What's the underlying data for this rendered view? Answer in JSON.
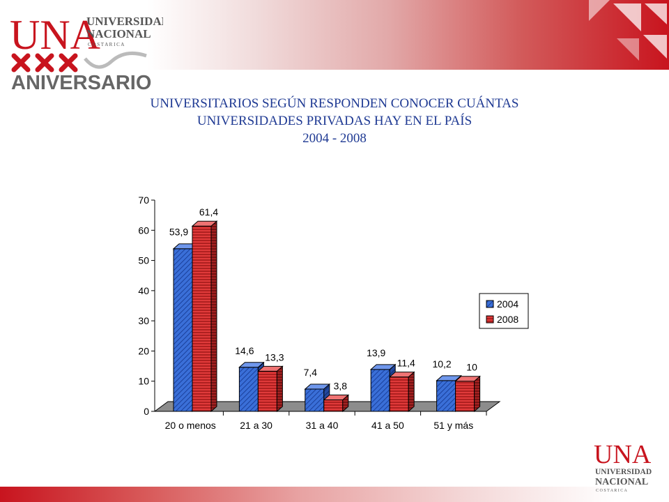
{
  "logo_top": {
    "una": "UNA",
    "universidad": "UNIVERSIDAD",
    "nacional": "NACIONAL",
    "costa_rica": "C O S T A   R I C A",
    "aniversario": "ANIVERSARIO"
  },
  "logo_bottom": {
    "una": "UNA",
    "universidad": "UNIVERSIDAD",
    "nacional": "NACIONAL",
    "costa_rica": "C O S T A   R I C A"
  },
  "title": {
    "line1": "UNIVERSITARIOS SEGÚN RESPONDEN CONOCER CUÁNTAS",
    "line2": "UNIVERSIDADES PRIVADAS HAY  EN EL PAÍS",
    "line3": "2004  - 2008"
  },
  "colors": {
    "brand_red": "#c8141e",
    "title_blue": "#1f3a93",
    "series_2004": "#3a6fd8",
    "series_2008": "#e03a3a"
  },
  "chart_data": {
    "type": "bar",
    "categories": [
      "20 o menos",
      "21 a 30",
      "31 a 40",
      "41 a 50",
      "51 y más"
    ],
    "series": [
      {
        "name": "2004",
        "values": [
          53.9,
          14.6,
          7.4,
          13.9,
          10.2
        ],
        "labels": [
          "53,9",
          "14,6",
          "7,4",
          "13,9",
          "10,2"
        ],
        "color": "#3a6fd8"
      },
      {
        "name": "2008",
        "values": [
          61.4,
          13.3,
          3.8,
          11.4,
          10
        ],
        "labels": [
          "61,4",
          "13,3",
          "3,8",
          "11,4",
          "10"
        ],
        "color": "#e03a3a"
      }
    ],
    "ylim": [
      0,
      70
    ],
    "yticks": [
      "0",
      "10",
      "20",
      "30",
      "40",
      "50",
      "60",
      "70"
    ],
    "grid": false,
    "legend": "right",
    "style": "3d-hatched"
  }
}
